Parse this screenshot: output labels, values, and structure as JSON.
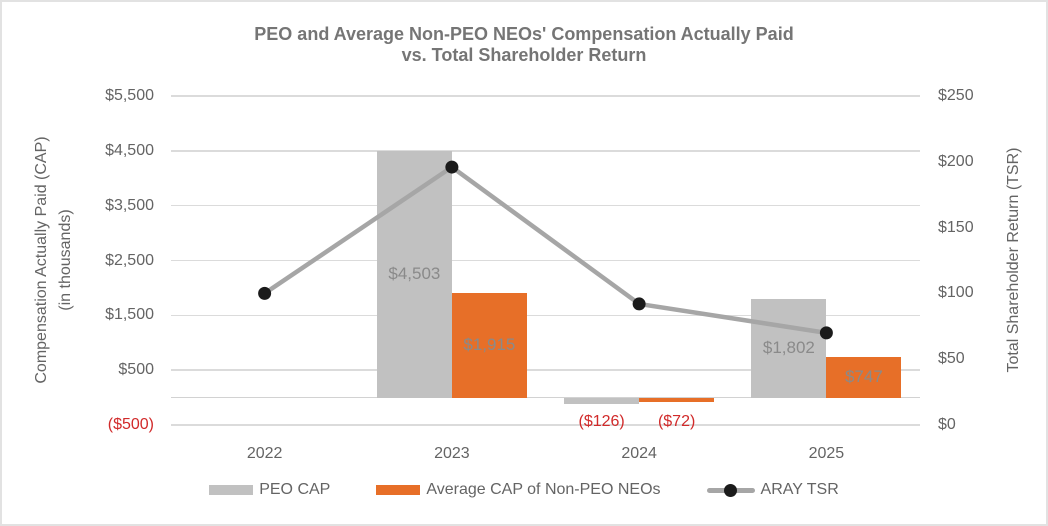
{
  "chart_data": {
    "type": "combo bar+line (dual axis)",
    "title_line1": "PEO and Average Non-PEO NEOs' Compensation Actually Paid",
    "title_line2": "vs. Total Shareholder Return",
    "categories": [
      "2022",
      "2023",
      "2024",
      "2025"
    ],
    "left_axis": {
      "title_line1": "Compensation Actually Paid (CAP)",
      "title_line2": "(in thousands)",
      "min": -500,
      "max": 5500,
      "ticks": [
        {
          "value": 5500,
          "label": "$5,500"
        },
        {
          "value": 4500,
          "label": "$4,500"
        },
        {
          "value": 3500,
          "label": "$3,500"
        },
        {
          "value": 2500,
          "label": "$2,500"
        },
        {
          "value": 1500,
          "label": "$1,500"
        },
        {
          "value": 500,
          "label": "$500"
        },
        {
          "value": -500,
          "label": "($500)",
          "negative": true
        }
      ]
    },
    "right_axis": {
      "title": "Total Shareholder Return (TSR)",
      "min": 0,
      "max": 250,
      "ticks": [
        {
          "value": 250,
          "label": "$250"
        },
        {
          "value": 200,
          "label": "$200"
        },
        {
          "value": 150,
          "label": "$150"
        },
        {
          "value": 100,
          "label": "$100"
        },
        {
          "value": 50,
          "label": "$50"
        },
        {
          "value": 0,
          "label": "$0"
        }
      ]
    },
    "bar_series": [
      {
        "name": "PEO CAP",
        "color": "#c1c1c1",
        "values": [
          null,
          4503,
          -126,
          1802
        ],
        "labels": [
          "",
          "$4,503",
          "($126)",
          "$1,802"
        ]
      },
      {
        "name": "Average CAP of Non-PEO NEOs",
        "color": "#e76f28",
        "values": [
          null,
          1915,
          -72,
          747
        ],
        "labels": [
          "",
          "$1,915",
          "($72)",
          "$747"
        ]
      }
    ],
    "line_series": {
      "name": "ARAY TSR",
      "axis": "right",
      "color": "#a6a6a6",
      "marker_color": "#1b1b1b",
      "values": [
        100,
        196,
        92,
        70
      ]
    },
    "legend": [
      {
        "label": "PEO CAP",
        "swatch": "bar",
        "color": "#c1c1c1"
      },
      {
        "label": "Average CAP of Non-PEO NEOs",
        "swatch": "bar",
        "color": "#e76f28"
      },
      {
        "label": "ARAY TSR",
        "swatch": "line-marker",
        "color": "#a6a6a6"
      }
    ],
    "layout": {
      "gridlines": true,
      "legend_position": "bottom"
    },
    "colors": {
      "title_text": "#757575",
      "axis_text": "#646464",
      "data_label": "#8a8a8a",
      "negative_label": "#d12a2a",
      "gridline": "#dbdbdb",
      "background": "#ffffff",
      "border": "#e2e2e2"
    }
  }
}
